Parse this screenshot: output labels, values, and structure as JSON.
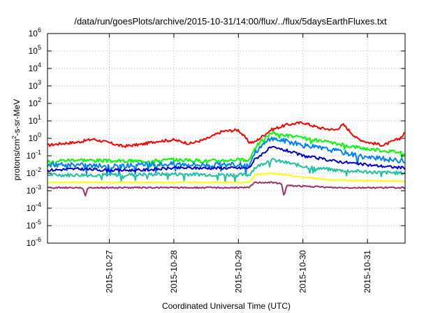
{
  "chart_data": {
    "type": "line",
    "title": "/data/run/goesPlots/archive/2015-10-31/14:00/flux/../flux/5daysEarthFluxes.txt",
    "xlabel": "Coordinated Universal Time (UTC)",
    "ylabel": {
      "base": "protons/cm",
      "sup": "2",
      "rest": "-s-sr-MeV"
    },
    "y_scale": "log",
    "ylim": [
      1e-06,
      1000000.0
    ],
    "y_ticks": [
      {
        "value": 1e-06,
        "exp": "-6"
      },
      {
        "value": 1e-05,
        "exp": "-5"
      },
      {
        "value": 0.0001,
        "exp": "-4"
      },
      {
        "value": 0.001,
        "exp": "-3"
      },
      {
        "value": 0.01,
        "exp": "-2"
      },
      {
        "value": 0.1,
        "exp": "-1"
      },
      {
        "value": 1,
        "exp": "0"
      },
      {
        "value": 10,
        "exp": "1"
      },
      {
        "value": 100,
        "exp": "2"
      },
      {
        "value": 1000,
        "exp": "3"
      },
      {
        "value": 10000,
        "exp": "4"
      },
      {
        "value": 100000,
        "exp": "5"
      },
      {
        "value": 1000000,
        "exp": "6"
      }
    ],
    "xlim": [
      "2015-10-26T01:00",
      "2015-10-31T14:00"
    ],
    "x_ticks": [
      "2015-10-27",
      "2015-10-28",
      "2015-10-29",
      "2015-10-30",
      "2015-10-31"
    ],
    "grid": true,
    "series": [
      {
        "color": "#ff0000",
        "noise": 0.08,
        "points": [
          [
            "2015-10-26T01:00",
            0.4
          ],
          [
            "2015-10-26T06:00",
            0.5
          ],
          [
            "2015-10-26T12:00",
            0.6
          ],
          [
            "2015-10-26T18:00",
            0.9
          ],
          [
            "2015-10-27T00:00",
            0.55
          ],
          [
            "2015-10-27T05:00",
            0.35
          ],
          [
            "2015-10-27T12:00",
            0.45
          ],
          [
            "2015-10-27T18:00",
            0.7
          ],
          [
            "2015-10-28T00:00",
            0.8
          ],
          [
            "2015-10-28T06:00",
            0.5
          ],
          [
            "2015-10-28T12:00",
            0.9
          ],
          [
            "2015-10-28T18:00",
            2.5
          ],
          [
            "2015-10-29T00:00",
            3.0
          ],
          [
            "2015-10-29T04:00",
            0.6
          ],
          [
            "2015-10-29T06:00",
            0.6
          ],
          [
            "2015-10-29T12:00",
            3.0
          ],
          [
            "2015-10-29T18:00",
            6.0
          ],
          [
            "2015-10-30T00:00",
            8.0
          ],
          [
            "2015-10-30T06:00",
            4.0
          ],
          [
            "2015-10-30T12:00",
            3.0
          ],
          [
            "2015-10-30T15:00",
            6.0
          ],
          [
            "2015-10-30T17:00",
            3.0
          ],
          [
            "2015-10-30T20:00",
            1.0
          ],
          [
            "2015-10-31T00:00",
            0.6
          ],
          [
            "2015-10-31T06:00",
            0.4
          ],
          [
            "2015-10-31T12:00",
            1.0
          ],
          [
            "2015-10-31T14:00",
            2.0
          ]
        ]
      },
      {
        "color": "#00ff00",
        "noise": 0.1,
        "points": [
          [
            "2015-10-26T01:00",
            0.05
          ],
          [
            "2015-10-26T12:00",
            0.06
          ],
          [
            "2015-10-27T00:00",
            0.05
          ],
          [
            "2015-10-27T12:00",
            0.05
          ],
          [
            "2015-10-28T00:00",
            0.06
          ],
          [
            "2015-10-28T12:00",
            0.05
          ],
          [
            "2015-10-29T00:00",
            0.06
          ],
          [
            "2015-10-29T04:00",
            0.05
          ],
          [
            "2015-10-29T06:00",
            0.3
          ],
          [
            "2015-10-29T12:00",
            2.0
          ],
          [
            "2015-10-29T18:00",
            1.5
          ],
          [
            "2015-10-30T00:00",
            1.0
          ],
          [
            "2015-10-30T12:00",
            0.5
          ],
          [
            "2015-10-31T00:00",
            0.25
          ],
          [
            "2015-10-31T14:00",
            0.15
          ]
        ]
      },
      {
        "color": "#0080ff",
        "noise": 0.14,
        "points": [
          [
            "2015-10-26T01:00",
            0.03
          ],
          [
            "2015-10-26T12:00",
            0.03
          ],
          [
            "2015-10-27T00:00",
            0.025
          ],
          [
            "2015-10-27T12:00",
            0.03
          ],
          [
            "2015-10-28T00:00",
            0.035
          ],
          [
            "2015-10-28T12:00",
            0.03
          ],
          [
            "2015-10-29T00:00",
            0.03
          ],
          [
            "2015-10-29T04:00",
            0.03
          ],
          [
            "2015-10-29T06:00",
            0.15
          ],
          [
            "2015-10-29T12:00",
            1.0
          ],
          [
            "2015-10-29T18:00",
            0.7
          ],
          [
            "2015-10-30T00:00",
            0.4
          ],
          [
            "2015-10-30T12:00",
            0.2
          ],
          [
            "2015-10-31T00:00",
            0.08
          ],
          [
            "2015-10-31T14:00",
            0.05
          ]
        ]
      },
      {
        "color": "#0000cc",
        "noise": 0.08,
        "points": [
          [
            "2015-10-26T01:00",
            0.015
          ],
          [
            "2015-10-26T12:00",
            0.018
          ],
          [
            "2015-10-27T00:00",
            0.015
          ],
          [
            "2015-10-27T12:00",
            0.015
          ],
          [
            "2015-10-28T00:00",
            0.02
          ],
          [
            "2015-10-28T12:00",
            0.02
          ],
          [
            "2015-10-29T00:00",
            0.02
          ],
          [
            "2015-10-29T04:00",
            0.02
          ],
          [
            "2015-10-29T06:00",
            0.06
          ],
          [
            "2015-10-29T12:00",
            0.3
          ],
          [
            "2015-10-29T18:00",
            0.2
          ],
          [
            "2015-10-30T00:00",
            0.1
          ],
          [
            "2015-10-30T12:00",
            0.05
          ],
          [
            "2015-10-31T00:00",
            0.03
          ],
          [
            "2015-10-31T14:00",
            0.02
          ]
        ]
      },
      {
        "color": "#20c0a0",
        "noise": 0.1,
        "points": [
          [
            "2015-10-26T01:00",
            0.008
          ],
          [
            "2015-10-27T00:00",
            0.008
          ],
          [
            "2015-10-28T00:00",
            0.009
          ],
          [
            "2015-10-29T00:00",
            0.008
          ],
          [
            "2015-10-29T04:00",
            0.008
          ],
          [
            "2015-10-29T06:00",
            0.02
          ],
          [
            "2015-10-29T12:00",
            0.06
          ],
          [
            "2015-10-29T18:00",
            0.04
          ],
          [
            "2015-10-30T00:00",
            0.025
          ],
          [
            "2015-10-30T12:00",
            0.015
          ],
          [
            "2015-10-31T00:00",
            0.012
          ],
          [
            "2015-10-31T14:00",
            0.01
          ]
        ]
      },
      {
        "color": "#ffff00",
        "noise": 0.03,
        "points": [
          [
            "2015-10-26T01:00",
            0.003
          ],
          [
            "2015-10-27T00:00",
            0.003
          ],
          [
            "2015-10-28T00:00",
            0.003
          ],
          [
            "2015-10-29T00:00",
            0.003
          ],
          [
            "2015-10-29T04:00",
            0.003
          ],
          [
            "2015-10-29T06:00",
            0.008
          ],
          [
            "2015-10-29T12:00",
            0.01
          ],
          [
            "2015-10-30T00:00",
            0.006
          ],
          [
            "2015-10-30T12:00",
            0.004
          ],
          [
            "2015-10-31T14:00",
            0.0035
          ]
        ]
      },
      {
        "color": "#993366",
        "noise": 0.04,
        "points": [
          [
            "2015-10-26T01:00",
            0.0015
          ],
          [
            "2015-10-26T14:00",
            0.0015
          ],
          [
            "2015-10-26T15:00",
            0.0005
          ],
          [
            "2015-10-26T16:00",
            0.0015
          ],
          [
            "2015-10-27T12:00",
            0.0015
          ],
          [
            "2015-10-28T12:00",
            0.0015
          ],
          [
            "2015-10-29T00:00",
            0.0015
          ],
          [
            "2015-10-29T04:00",
            0.0015
          ],
          [
            "2015-10-29T06:00",
            0.003
          ],
          [
            "2015-10-29T12:00",
            0.003
          ],
          [
            "2015-10-29T16:00",
            0.0025
          ],
          [
            "2015-10-29T17:00",
            0.0005
          ],
          [
            "2015-10-29T18:00",
            0.002
          ],
          [
            "2015-10-30T12:00",
            0.0015
          ],
          [
            "2015-10-31T14:00",
            0.0015
          ]
        ]
      }
    ]
  }
}
